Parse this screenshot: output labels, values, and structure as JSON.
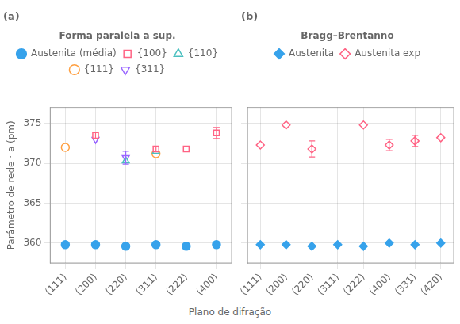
{
  "chart_data": [
    {
      "type": "scatter",
      "title": "(a)",
      "ylabel": "Parâmetro de rede · a (pm)",
      "categories": [
        "(111)",
        "(200)",
        "(220)",
        "(311)",
        "(222)",
        "(400)"
      ],
      "series": [
        {
          "name": "Austenita (média)",
          "marker": "filled_circle",
          "values": [
            359.8,
            359.8,
            359.6,
            359.8,
            359.6,
            359.8
          ]
        },
        {
          "name": "{100}",
          "marker": "open_square",
          "values": [
            null,
            373.5,
            null,
            371.8,
            371.8,
            373.8
          ],
          "yerr": [
            null,
            0.4,
            null,
            0.3,
            0.0,
            0.7
          ]
        },
        {
          "name": "{110}",
          "marker": "open_triangle",
          "values": [
            null,
            null,
            370.3,
            371.5,
            null,
            null
          ],
          "yerr": [
            null,
            null,
            0.0,
            0.0,
            null,
            null
          ]
        },
        {
          "name": "{111}",
          "marker": "open_circle",
          "values": [
            372.0,
            null,
            null,
            371.2,
            null,
            null
          ],
          "yerr": [
            0.0,
            null,
            null,
            0.0,
            null,
            null
          ]
        },
        {
          "name": "{311}",
          "marker": "open_triangle_down",
          "values": [
            null,
            373.0,
            370.7,
            null,
            null,
            null
          ],
          "yerr": [
            null,
            0.0,
            0.8,
            null,
            null,
            null
          ]
        }
      ],
      "legend_title": "Forma paralela a sup.",
      "legend": "top",
      "ylim": [
        357.5,
        377
      ],
      "yticks": [
        360,
        365,
        370,
        375
      ],
      "grid": true
    },
    {
      "type": "scatter",
      "title": "(b)",
      "xlabel": "Plano de difração",
      "categories": [
        "(111)",
        "(200)",
        "(220)",
        "(311)",
        "(222)",
        "(400)",
        "(331)",
        "(420)"
      ],
      "series": [
        {
          "name": "Austenita",
          "marker": "filled_diamond",
          "values": [
            359.8,
            359.8,
            359.6,
            359.8,
            359.6,
            360.0,
            359.8,
            360.0
          ]
        },
        {
          "name": "Austenita exp",
          "marker": "open_diamond",
          "values": [
            372.3,
            374.8,
            371.8,
            null,
            374.8,
            372.3,
            372.8,
            373.2
          ],
          "yerr": [
            0.0,
            0.0,
            1.0,
            null,
            0.0,
            0.7,
            0.7,
            0.0
          ]
        }
      ],
      "legend_title": "Bragg–Brentanno",
      "legend": "top",
      "tick_labels": "x",
      "ylim": [
        357.5,
        377
      ],
      "yticks": [
        360,
        365,
        370,
        375
      ],
      "grid": true
    }
  ]
}
